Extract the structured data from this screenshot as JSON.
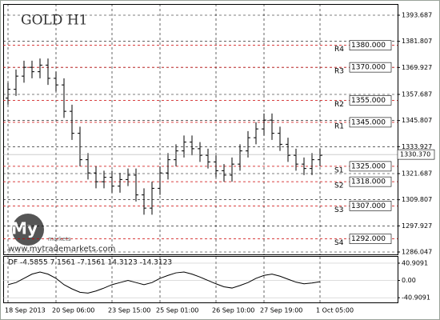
{
  "chart_data": {
    "type": "ohlc",
    "title": "GOLD H1",
    "categories": [
      "18 Sep 2013",
      null,
      null,
      null,
      null,
      null,
      "20 Sep 06:00",
      null,
      null,
      null,
      null,
      null,
      null,
      "23 Sep 15:00",
      null,
      null,
      null,
      null,
      null,
      "25 Sep 01:00",
      null,
      null,
      null,
      null,
      null,
      null,
      "26 Sep 10:00",
      null,
      null,
      null,
      null,
      null,
      "27 Sep 19:00",
      null,
      null,
      null,
      null,
      null,
      null,
      "1 Oct 05:00"
    ],
    "open": [
      1356,
      1360,
      1366,
      1370,
      1368,
      1371,
      1365,
      1362,
      1350,
      1340,
      1328,
      1322,
      1318,
      1320,
      1316,
      1319,
      1321,
      1312,
      1306,
      1315,
      1322,
      1328,
      1332,
      1336,
      1333,
      1330,
      1327,
      1323,
      1321,
      1326,
      1332,
      1338,
      1342,
      1346,
      1340,
      1335,
      1330,
      1326,
      1324,
      1328
    ],
    "high": [
      1363,
      1369,
      1373,
      1373,
      1374,
      1374,
      1368,
      1365,
      1353,
      1343,
      1331,
      1325,
      1323,
      1323,
      1322,
      1324,
      1324,
      1315,
      1318,
      1325,
      1331,
      1335,
      1339,
      1339,
      1336,
      1333,
      1330,
      1326,
      1329,
      1335,
      1341,
      1345,
      1349,
      1349,
      1343,
      1338,
      1333,
      1329,
      1331,
      1333
    ],
    "low": [
      1353,
      1357,
      1363,
      1365,
      1365,
      1362,
      1359,
      1347,
      1337,
      1325,
      1319,
      1315,
      1315,
      1313,
      1313,
      1316,
      1309,
      1303,
      1303,
      1312,
      1319,
      1325,
      1329,
      1330,
      1327,
      1324,
      1320,
      1318,
      1318,
      1323,
      1329,
      1335,
      1339,
      1337,
      1332,
      1327,
      1323,
      1321,
      1321,
      1325
    ],
    "close": [
      1360,
      1366,
      1370,
      1368,
      1371,
      1365,
      1362,
      1350,
      1340,
      1328,
      1322,
      1318,
      1320,
      1316,
      1319,
      1321,
      1312,
      1306,
      1315,
      1322,
      1328,
      1332,
      1336,
      1333,
      1330,
      1327,
      1323,
      1321,
      1326,
      1332,
      1338,
      1342,
      1346,
      1340,
      1335,
      1330,
      1326,
      1324,
      1328,
      1330
    ],
    "color": "#000000",
    "ylim": [
      1284.96,
      1398.78
    ],
    "yticks": [
      1393.687,
      1381.807,
      1369.927,
      1357.687,
      1345.807,
      1333.927,
      1321.687,
      1309.807,
      1297.927,
      1286.047
    ],
    "grid": true,
    "current_price": 1330.37,
    "current_price_label": "1330.370",
    "levels": {
      "names": [
        "R4",
        "R3",
        "R2",
        "R1",
        "S1",
        "S2",
        "S3",
        "S4"
      ],
      "values": [
        1380,
        1370,
        1355,
        1345,
        1325,
        1318,
        1307,
        1292
      ],
      "value_labels": [
        "1380.000",
        "1370.000",
        "1355.000",
        "1345.000",
        "1325.000",
        "1318.000",
        "1307.000",
        "1292.000"
      ],
      "color": "#cc0000"
    },
    "indicator": {
      "label": "DF -4.5855 7.1561 -7.1561 14.3123 -14.3123",
      "values": [
        -10,
        -5,
        5,
        15,
        20,
        15,
        5,
        -10,
        -20,
        -28,
        -30,
        -25,
        -18,
        -10,
        -5,
        0,
        -5,
        -10,
        -5,
        5,
        12,
        18,
        20,
        15,
        8,
        0,
        -8,
        -15,
        -18,
        -12,
        -5,
        5,
        12,
        15,
        10,
        3,
        -4,
        -8,
        -6,
        -3
      ],
      "color": "#000000",
      "ylim": [
        -52,
        56
      ],
      "yticks": [
        40.9091,
        {
          "value": 0,
          "label": "0.00"
        },
        -40.9091
      ]
    }
  },
  "watermark": {
    "brand": "My Trade",
    "sub": "markets",
    "url": "www.mytrademarkets.com"
  }
}
